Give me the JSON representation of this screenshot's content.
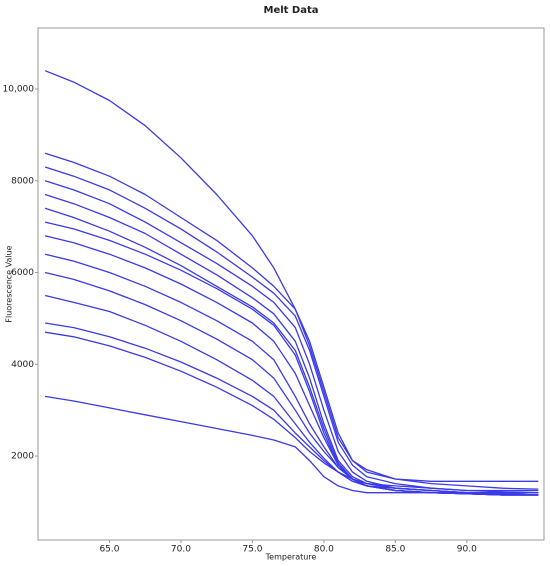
{
  "chart_data": {
    "type": "line",
    "title": "Melt Data",
    "x_label": "Temperature",
    "y_label": "Fluorescence Value",
    "x": [
      60.5,
      62.5,
      65,
      67.5,
      70,
      72.5,
      75,
      76.5,
      78,
      79,
      80,
      81,
      82,
      83,
      85,
      87.5,
      90,
      92.5,
      95
    ],
    "xlim": [
      60,
      95.4
    ],
    "xticks": [
      {
        "value": 65,
        "label": "65.0"
      },
      {
        "value": 70,
        "label": "70.0"
      },
      {
        "value": 75,
        "label": "75.0"
      },
      {
        "value": 80,
        "label": "80.0"
      },
      {
        "value": 85,
        "label": "85.0"
      },
      {
        "value": 90,
        "label": "90.0"
      }
    ],
    "ylim": [
      170,
      11330
    ],
    "yticks": [
      2000,
      4000,
      6000,
      8000,
      {
        "value": 10000,
        "label": "10,000"
      }
    ],
    "series": [
      {
        "color": "#3a3ae8",
        "values": [
          10400,
          10150,
          9750,
          9200,
          8500,
          7700,
          6800,
          6100,
          5200,
          4400,
          3400,
          2400,
          1900,
          1700,
          1500,
          1400,
          1350,
          1300,
          1280
        ]
      },
      {
        "color": "#3a3ae8",
        "values": [
          8600,
          8400,
          8100,
          7700,
          7200,
          6700,
          6100,
          5700,
          5200,
          4500,
          3500,
          2500,
          1900,
          1650,
          1500,
          1450,
          1450,
          1450,
          1450
        ]
      },
      {
        "color": "#3a3ae8",
        "values": [
          8300,
          8100,
          7800,
          7400,
          6950,
          6450,
          5900,
          5550,
          5050,
          4300,
          3300,
          2300,
          1800,
          1550,
          1400,
          1300,
          1250,
          1220,
          1200
        ]
      },
      {
        "color": "#3a3ae8",
        "values": [
          8000,
          7800,
          7500,
          7100,
          6650,
          6200,
          5700,
          5350,
          4800,
          4000,
          3000,
          2100,
          1650,
          1450,
          1300,
          1250,
          1200,
          1180,
          1150
        ]
      },
      {
        "color": "#3a3ae8",
        "values": [
          7700,
          7500,
          7200,
          6850,
          6400,
          5950,
          5450,
          5100,
          4500,
          3700,
          2700,
          1900,
          1550,
          1400,
          1300,
          1250,
          1200,
          1180,
          1150
        ]
      },
      {
        "color": "#3a3ae8",
        "values": [
          7400,
          7200,
          6900,
          6550,
          6150,
          5700,
          5250,
          4900,
          4300,
          3500,
          2600,
          1850,
          1500,
          1350,
          1250,
          1200,
          1180,
          1150,
          1150
        ]
      },
      {
        "color": "#3a3ae8",
        "values": [
          7100,
          6950,
          6700,
          6400,
          6050,
          5650,
          5200,
          4850,
          4200,
          3400,
          2500,
          1800,
          1500,
          1350,
          1250,
          1200,
          1180,
          1150,
          1150
        ]
      },
      {
        "color": "#3a3ae8",
        "values": [
          6800,
          6650,
          6400,
          6100,
          5750,
          5350,
          4900,
          4500,
          3800,
          3100,
          2400,
          1800,
          1500,
          1350,
          1250,
          1200,
          1180,
          1150,
          1150
        ]
      },
      {
        "color": "#3a3ae8",
        "values": [
          6400,
          6250,
          6000,
          5700,
          5350,
          4950,
          4500,
          4100,
          3300,
          2700,
          2200,
          1750,
          1500,
          1350,
          1250,
          1200,
          1180,
          1150,
          1150
        ]
      },
      {
        "color": "#3a3ae8",
        "values": [
          6000,
          5850,
          5600,
          5300,
          4950,
          4550,
          4100,
          3700,
          3000,
          2500,
          2100,
          1750,
          1500,
          1400,
          1300,
          1250,
          1200,
          1180,
          1150
        ]
      },
      {
        "color": "#3a3ae8",
        "values": [
          5500,
          5350,
          5150,
          4850,
          4500,
          4100,
          3650,
          3300,
          2700,
          2300,
          1950,
          1650,
          1450,
          1350,
          1250,
          1200,
          1180,
          1150,
          1150
        ]
      },
      {
        "color": "#3a3ae8",
        "values": [
          4900,
          4800,
          4600,
          4350,
          4050,
          3700,
          3300,
          3000,
          2500,
          2200,
          1900,
          1650,
          1450,
          1350,
          1300,
          1250,
          1200,
          1200,
          1200
        ]
      },
      {
        "color": "#3a3ae8",
        "values": [
          4700,
          4600,
          4400,
          4150,
          3850,
          3500,
          3100,
          2800,
          2400,
          2100,
          1850,
          1650,
          1500,
          1400,
          1350,
          1300,
          1250,
          1250,
          1250
        ]
      },
      {
        "color": "#3a3ae8",
        "values": [
          3300,
          3200,
          3050,
          2900,
          2750,
          2600,
          2450,
          2350,
          2200,
          1900,
          1550,
          1350,
          1250,
          1200,
          1200,
          1200,
          1200,
          1200,
          1200
        ]
      }
    ]
  }
}
